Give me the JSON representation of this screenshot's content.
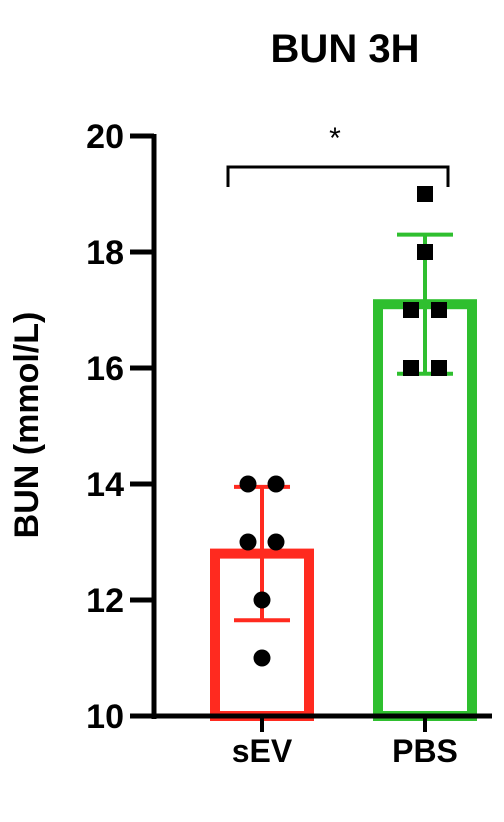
{
  "chart_data": {
    "type": "bar",
    "title": "BUN 3H",
    "xlabel": "",
    "ylabel": "BUN (mmol/L)",
    "ylim": [
      10,
      20
    ],
    "yticks": [
      10,
      12,
      14,
      16,
      18,
      20
    ],
    "grid": false,
    "legend": "none",
    "categories": [
      "sEV",
      "PBS"
    ],
    "series": [
      {
        "values": [
          12.8,
          17.1
        ],
        "error_sd": [
          1.15,
          1.2
        ],
        "colors": [
          "#ff2a1f",
          "#2fbf2f"
        ],
        "points": [
          [
            14,
            14,
            13,
            13,
            12,
            11
          ],
          [
            19,
            18,
            17,
            17,
            16,
            16
          ]
        ],
        "point_markers": [
          "circle",
          "square"
        ]
      }
    ],
    "annotations": [
      {
        "text": "*",
        "between": [
          "sEV",
          "PBS"
        ]
      }
    ]
  }
}
